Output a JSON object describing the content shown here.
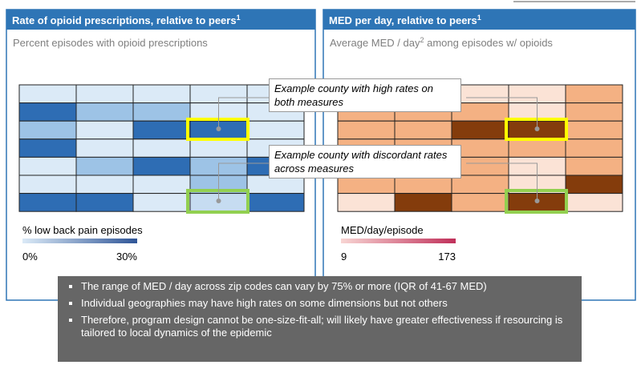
{
  "panels": [
    {
      "title": "Rate of opioid prescriptions, relative to peers",
      "title_note": "1",
      "subtitle": [
        "Percent episodes with opioid prescriptions"
      ],
      "cells": [
        [
          "#dbeaf7",
          "#dbeaf7",
          "#dbeaf7",
          "#dbeaf7",
          "#dbeaf7"
        ],
        [
          "#2e6db4",
          "#9dc3e6",
          "#9dc3e6",
          "#dbeaf7",
          "#dbeaf7"
        ],
        [
          "#9dc3e6",
          "#dbeaf7",
          "#2e6db4",
          "#2e6db4",
          "#dbeaf7"
        ],
        [
          "#2e6db4",
          "#dbeaf7",
          "#dbeaf7",
          "#dbeaf7",
          "#dbeaf7"
        ],
        [
          "#dbeaf7",
          "#9dc3e6",
          "#2e6db4",
          "#9dc3e6",
          "#2e6db4"
        ],
        [
          "#dbeaf7",
          "#dbeaf7",
          "#dbeaf7",
          "#9dc3e6",
          "#dbeaf7"
        ],
        [
          "#2e6db4",
          "#2e6db4",
          "#dbeaf7",
          "#c6dcf1",
          "#2e6db4"
        ]
      ],
      "legend": {
        "title": "% low back pain episodes",
        "min": "0%",
        "max": "30%",
        "colors": [
          "#dbeaf7",
          "#2f5597"
        ]
      }
    },
    {
      "title": "MED per day, relative to peers",
      "title_note": "1",
      "subtitle": [
        "Average MED / day",
        "2",
        " among episodes w/ opioids"
      ],
      "cells": [
        [
          "#f4b183",
          "#fbe3d6",
          "#fbe3d6",
          "#fbe3d6",
          "#f4b183"
        ],
        [
          "#f4b183",
          "#f4b183",
          "#f4b183",
          "#fbe3d6",
          "#f4b183"
        ],
        [
          "#f4b183",
          "#f4b183",
          "#843c0c",
          "#843c0c",
          "#f4b183"
        ],
        [
          "#f4b183",
          "#f4b183",
          "#f4b183",
          "#f4b183",
          "#f4b183"
        ],
        [
          "#fbe3d6",
          "#fbe3d6",
          "#f4b183",
          "#fbe3d6",
          "#f4b183"
        ],
        [
          "#f4b183",
          "#f4b183",
          "#f4b183",
          "#fbe3d6",
          "#843c0c"
        ],
        [
          "#fbe3d6",
          "#843c0c",
          "#f4b183",
          "#843c0c",
          "#fbe3d6"
        ]
      ],
      "legend": {
        "title": "MED/day/episode",
        "min": "9",
        "max": "173",
        "colors": [
          "#f8d5d3",
          "#c0305a"
        ]
      }
    }
  ],
  "callouts": [
    "Example county with high rates on both measures",
    "Example county with discordant rates across measures"
  ],
  "bullets": [
    "The range of MED / day across zip codes can vary by 75% or more (IQR of 41-67 MED)",
    "Individual geographies may have high rates on some dimensions but not others",
    "Therefore, program design cannot be one-size-fit-all; will likely have greater effectiveness if resourcing is tailored to local dynamics of the epidemic"
  ]
}
